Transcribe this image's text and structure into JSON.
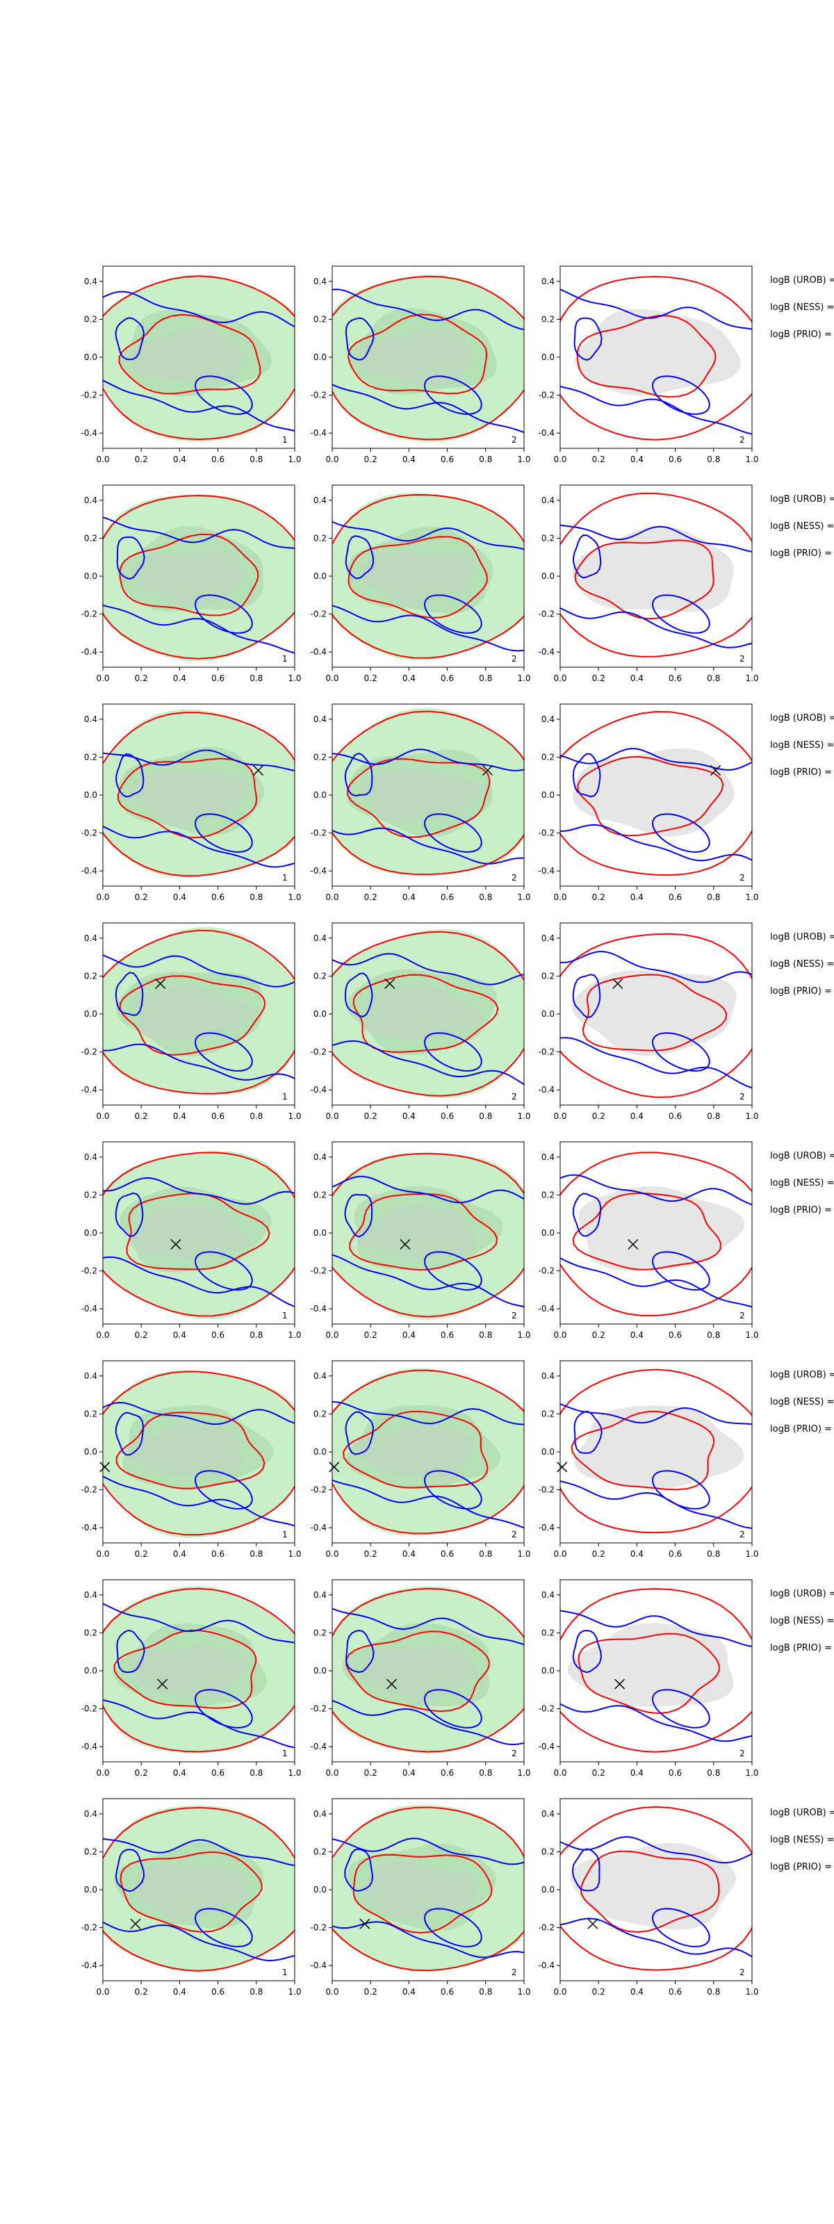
{
  "chart_data": {
    "type": "contour-grid",
    "layout": {
      "rows": 8,
      "cols": 3
    },
    "x_ticks": [
      "0.0",
      "0.2",
      "0.4",
      "0.6",
      "0.8",
      "1.0"
    ],
    "y_ticks": [
      "0.4",
      "0.2",
      "0.0",
      "-0.2",
      "-0.4"
    ],
    "xlim": [
      0.0,
      1.0
    ],
    "ylim": [
      -0.48,
      0.48
    ],
    "corner_labels": [
      "1",
      "2",
      "2"
    ],
    "fill_colors": [
      "#b6eab6",
      "#b6eab6",
      "#e6e6e6"
    ],
    "contour_colors": {
      "red": "#ff0000",
      "blue": "#0000ff"
    },
    "side_labels": [
      "logB (UROB) =",
      "logB (NESS) =",
      "logB (PRIO) ="
    ],
    "markers": [
      null,
      null,
      {
        "x": 0.81,
        "y": 0.13
      },
      {
        "x": 0.3,
        "y": 0.16
      },
      {
        "x": 0.38,
        "y": -0.06
      },
      {
        "x": 0.01,
        "y": -0.08
      },
      {
        "x": 0.31,
        "y": -0.07
      },
      {
        "x": 0.17,
        "y": -0.18
      }
    ]
  }
}
